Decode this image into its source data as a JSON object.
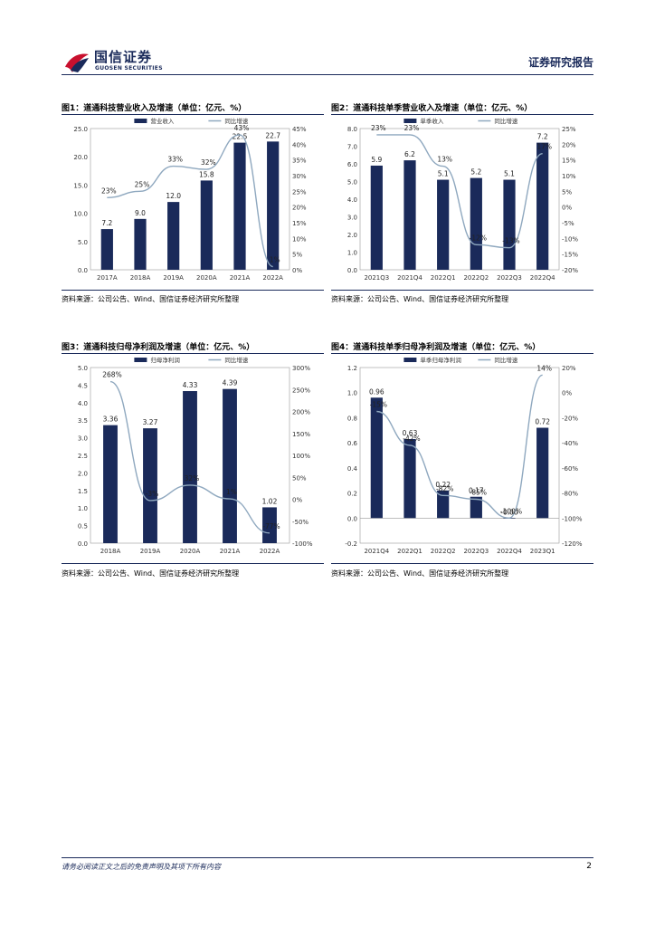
{
  "header": {
    "brand_cn": "国信证券",
    "brand_en": "GUOSEN SECURITIES",
    "report_type": "证券研究报告",
    "brand_color": "#1a2a5a",
    "logo_color": "#c8102e"
  },
  "footer": {
    "disclaimer": "请务必阅读正文之后的免责声明及其项下所有内容",
    "page_number": "2"
  },
  "colors": {
    "bar": "#1a2a5a",
    "line": "#8fa8bf"
  },
  "chart_data": [
    {
      "id": "fig1",
      "type": "bar",
      "title": "图1：道通科技营业收入及增速（单位：亿元、%）",
      "source": "资料来源：公司公告、Wind、国信证券经济研究所整理",
      "categories": [
        "2017A",
        "2018A",
        "2019A",
        "2020A",
        "2021A",
        "2022A"
      ],
      "series": [
        {
          "name": "营业收入",
          "kind": "bar",
          "axis": "left",
          "values": [
            7.2,
            9.0,
            12.0,
            15.8,
            22.5,
            22.7
          ],
          "labels": [
            "7.2",
            "9.0",
            "12.0",
            "15.8",
            "22.5",
            "22.7"
          ]
        },
        {
          "name": "同比增速",
          "kind": "line",
          "axis": "right",
          "values": [
            23,
            25,
            33,
            32,
            43,
            1
          ],
          "labels": [
            "23%",
            "25%",
            "33%",
            "32%",
            "43%",
            "1%"
          ]
        }
      ],
      "left_axis": {
        "min": 0,
        "max": 25,
        "ticks": [
          "0.0",
          "5.0",
          "10.0",
          "15.0",
          "20.0",
          "25.0"
        ]
      },
      "right_axis": {
        "min": 0,
        "max": 45,
        "ticks": [
          "0%",
          "5%",
          "10%",
          "15%",
          "20%",
          "25%",
          "30%",
          "35%",
          "40%",
          "45%"
        ]
      },
      "legend_position": "top"
    },
    {
      "id": "fig2",
      "type": "bar",
      "title": "图2：道通科技单季营业收入及增速（单位：亿元、%）",
      "source": "资料来源：公司公告、Wind、国信证券经济研究所整理",
      "categories": [
        "2021Q3",
        "2021Q4",
        "2022Q1",
        "2022Q2",
        "2022Q3",
        "2022Q4"
      ],
      "series": [
        {
          "name": "单季收入",
          "kind": "bar",
          "axis": "left",
          "values": [
            5.9,
            6.2,
            5.1,
            5.2,
            5.1,
            7.2
          ],
          "labels": [
            "5.9",
            "6.2",
            "5.1",
            "5.2",
            "5.1",
            "7.2"
          ]
        },
        {
          "name": "同比增速",
          "kind": "line",
          "axis": "right",
          "values": [
            23,
            23,
            13,
            -12,
            -13,
            17
          ],
          "labels": [
            "23%",
            "23%",
            "13%",
            "-12%",
            "-13%",
            "17%"
          ]
        }
      ],
      "left_axis": {
        "min": 0,
        "max": 8,
        "ticks": [
          "0.0",
          "1.0",
          "2.0",
          "3.0",
          "4.0",
          "5.0",
          "6.0",
          "7.0",
          "8.0"
        ]
      },
      "right_axis": {
        "min": -20,
        "max": 25,
        "ticks": [
          "-20%",
          "-15%",
          "-10%",
          "-5%",
          "0%",
          "5%",
          "10%",
          "15%",
          "20%",
          "25%"
        ]
      },
      "legend_position": "top"
    },
    {
      "id": "fig3",
      "type": "bar",
      "title": "图3：道通科技归母净利润及增速（单位：亿元、%）",
      "source": "资料来源：公司公告、Wind、国信证券经济研究所整理",
      "categories": [
        "2018A",
        "2019A",
        "2020A",
        "2021A",
        "2022A"
      ],
      "series": [
        {
          "name": "归母净利润",
          "kind": "bar",
          "axis": "left",
          "values": [
            3.36,
            3.27,
            4.33,
            4.39,
            1.02
          ],
          "labels": [
            "3.36",
            "3.27",
            "4.33",
            "4.39",
            "1.02"
          ]
        },
        {
          "name": "同比增速",
          "kind": "line",
          "axis": "right",
          "values": [
            268,
            -3,
            32,
            1,
            -77
          ],
          "labels": [
            "268%",
            "-3%",
            "32%",
            "1%",
            "-77%"
          ]
        }
      ],
      "left_axis": {
        "min": 0,
        "max": 5,
        "ticks": [
          "0.0",
          "0.5",
          "1.0",
          "1.5",
          "2.0",
          "2.5",
          "3.0",
          "3.5",
          "4.0",
          "4.5",
          "5.0"
        ]
      },
      "right_axis": {
        "min": -100,
        "max": 300,
        "ticks": [
          "-100%",
          "-50%",
          "0%",
          "50%",
          "100%",
          "150%",
          "200%",
          "250%",
          "300%"
        ]
      },
      "legend_position": "top"
    },
    {
      "id": "fig4",
      "type": "bar",
      "title": "图4：道通科技单季归母净利润及增速（单位：亿元、%）",
      "source": "资料来源：公司公告、Wind、国信证券经济研究所整理",
      "categories": [
        "2021Q4",
        "2022Q1",
        "2022Q2",
        "2022Q3",
        "2022Q4",
        "2023Q1"
      ],
      "series": [
        {
          "name": "单季归母净利润",
          "kind": "bar",
          "axis": "left",
          "values": [
            0.96,
            0.63,
            0.22,
            0.17,
            -0.004,
            0.72
          ],
          "labels": [
            "0.96",
            "0.63",
            "0.22",
            "0.17",
            "-0.00",
            "0.72"
          ]
        },
        {
          "name": "同比增速",
          "kind": "line",
          "axis": "right",
          "values": [
            -15,
            -42,
            -82,
            -85,
            -100,
            14
          ],
          "labels": [
            "-15%",
            "-42%",
            "-82%",
            "-85%",
            "-100%",
            "14%"
          ]
        }
      ],
      "left_axis": {
        "min": -0.2,
        "max": 1.2,
        "ticks": [
          "-0.2",
          "0.0",
          "0.2",
          "0.4",
          "0.6",
          "0.8",
          "1.0",
          "1.2"
        ]
      },
      "right_axis": {
        "min": -120,
        "max": 20,
        "ticks": [
          "-120%",
          "-100%",
          "-80%",
          "-60%",
          "-40%",
          "-20%",
          "0%",
          "20%"
        ]
      },
      "legend_position": "top"
    }
  ]
}
